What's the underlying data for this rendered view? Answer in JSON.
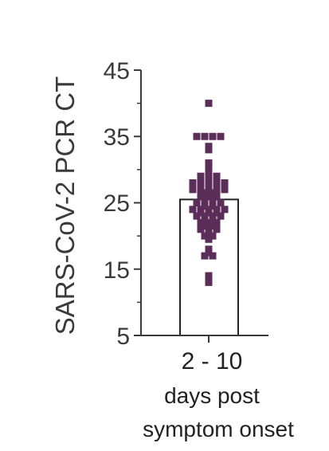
{
  "chart_data": {
    "type": "scatter",
    "ylabel": "SARS-CoV-2 PCR CT",
    "xlabel_lines": [
      "days post",
      "symptom onset"
    ],
    "categories": [
      "2 - 10"
    ],
    "yticks": [
      "45",
      "35",
      "25",
      "15",
      "5"
    ],
    "ylim": [
      5,
      45
    ],
    "bar_value": 25.5,
    "grid": false,
    "legend": "none",
    "marker_color": "#5b2d59",
    "bar_color": "#ffffff",
    "axis_color": "#3a3a3a",
    "points": [
      40.0,
      35.0,
      35.0,
      35.0,
      35.0,
      33.5,
      33.0,
      31.0,
      30.5,
      30.0,
      29.0,
      29.0,
      29.0,
      28.0,
      28.0,
      28.0,
      28.0,
      28.0,
      27.0,
      27.0,
      27.0,
      27.0,
      27.0,
      26.5,
      26.5,
      26.0,
      26.0,
      26.0,
      25.5,
      25.5,
      25.0,
      25.0,
      25.0,
      25.0,
      24.5,
      24.5,
      24.0,
      24.0,
      24.0,
      24.0,
      24.0,
      23.5,
      23.5,
      23.5,
      23.0,
      23.0,
      23.0,
      23.0,
      22.5,
      22.5,
      22.0,
      22.0,
      22.0,
      21.5,
      21.5,
      21.0,
      21.0,
      21.0,
      20.5,
      20.0,
      20.0,
      19.5,
      18.0,
      17.5,
      17.0,
      17.0,
      14.0,
      13.5,
      13.0
    ]
  }
}
